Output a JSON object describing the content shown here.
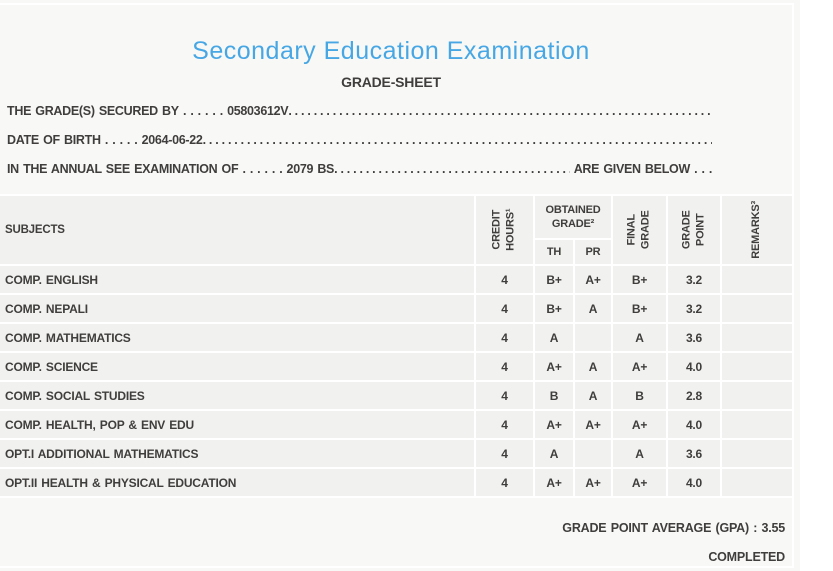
{
  "colors": {
    "title_blue": "#47a7e4",
    "text": "#403e3c",
    "page_bg": "#f8f8f7",
    "cell_bg": "#f1f1ef",
    "grid_line": "#ffffff"
  },
  "header": {
    "title": "Secondary Education Examination",
    "subtitle": "GRADE-SHEET"
  },
  "dots_fill": ". . . . . . . . . . . . . . . . . . . . . . . . . . . . . . . . . . . . . . . . . . . . . . . . . . . . . . . . . . . . . . . . . . . . . . . . . . . . . . . . . . . . . . . . . . . . . . . . . . . . . . . . ",
  "info_lines": [
    {
      "label": "THE GRADE(S) SECURED BY",
      "leader": " . . . . . . ",
      "value": "05803612V",
      "suffix": ""
    },
    {
      "label": "DATE OF BIRTH",
      "leader": " . . . . . ",
      "value": "2064-06-22",
      "suffix": ""
    },
    {
      "label": "IN THE ANNUAL SEE EXAMINATION OF",
      "leader": " . . . . . . ",
      "value": "2079 BS",
      "suffix": " ARE GIVEN BELOW . . ."
    }
  ],
  "table": {
    "headers": {
      "subjects": "SUBJECTS",
      "credit_hours": "CREDIT\nHOURS¹",
      "obtained_grade": "OBTAINED\nGRADE²",
      "th": "TH",
      "pr": "PR",
      "final_grade": "FINAL\nGRADE",
      "grade_point": "GRADE\nPOINT",
      "remarks": "REMARKS³"
    },
    "rows": [
      {
        "subject": "COMP. ENGLISH",
        "credit": "4",
        "th": "B+",
        "pr": "A+",
        "final": "B+",
        "gp": "3.2",
        "remarks": ""
      },
      {
        "subject": "COMP. NEPALI",
        "credit": "4",
        "th": "B+",
        "pr": "A",
        "final": "B+",
        "gp": "3.2",
        "remarks": ""
      },
      {
        "subject": "COMP. MATHEMATICS",
        "credit": "4",
        "th": "A",
        "pr": "",
        "final": "A",
        "gp": "3.6",
        "remarks": ""
      },
      {
        "subject": "COMP. SCIENCE",
        "credit": "4",
        "th": "A+",
        "pr": "A",
        "final": "A+",
        "gp": "4.0",
        "remarks": ""
      },
      {
        "subject": "COMP. SOCIAL STUDIES",
        "credit": "4",
        "th": "B",
        "pr": "A",
        "final": "B",
        "gp": "2.8",
        "remarks": ""
      },
      {
        "subject": "COMP. HEALTH, POP & ENV EDU",
        "credit": "4",
        "th": "A+",
        "pr": "A+",
        "final": "A+",
        "gp": "4.0",
        "remarks": ""
      },
      {
        "subject": "OPT.I ADDITIONAL MATHEMATICS",
        "credit": "4",
        "th": "A",
        "pr": "",
        "final": "A",
        "gp": "3.6",
        "remarks": ""
      },
      {
        "subject": "OPT.II HEALTH & PHYSICAL EDUCATION",
        "credit": "4",
        "th": "A+",
        "pr": "A+",
        "final": "A+",
        "gp": "4.0",
        "remarks": ""
      }
    ]
  },
  "footer": {
    "gpa": "GRADE POINT AVERAGE (GPA) : 3.55",
    "status": "COMPLETED"
  }
}
